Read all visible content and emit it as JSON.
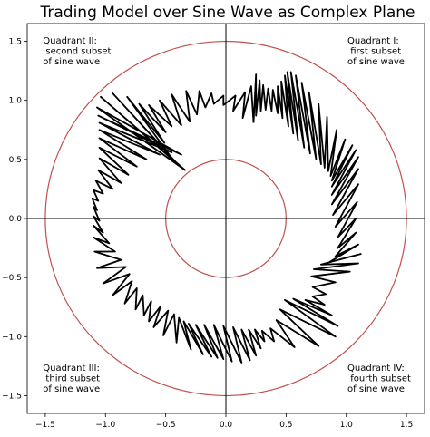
{
  "chart_data": {
    "type": "line",
    "title": "Trading Model over Sine Wave as Complex Plane",
    "xlim": [
      -1.65,
      1.65
    ],
    "ylim": [
      -1.65,
      1.65
    ],
    "grid": false,
    "x_ticks": [
      {
        "value": -1.5,
        "label": "−1.5"
      },
      {
        "value": -1.0,
        "label": "−1.0"
      },
      {
        "value": -0.5,
        "label": "−0.5"
      },
      {
        "value": 0.0,
        "label": "0.0"
      },
      {
        "value": 0.5,
        "label": "0.5"
      },
      {
        "value": 1.0,
        "label": "1.0"
      },
      {
        "value": 1.5,
        "label": "1.5"
      }
    ],
    "y_ticks": [
      {
        "value": 1.5,
        "label": "1.5"
      },
      {
        "value": 1.0,
        "label": "1.0"
      },
      {
        "value": 0.5,
        "label": "0.5"
      },
      {
        "value": 0.0,
        "label": "0.0"
      },
      {
        "value": -0.5,
        "label": "−0.5"
      },
      {
        "value": -1.0,
        "label": "−1.0"
      },
      {
        "value": -1.5,
        "label": "−1.5"
      }
    ],
    "circles": [
      {
        "radius": 1.5,
        "color": "#c0504d"
      },
      {
        "radius": 0.5,
        "color": "#c0504d"
      }
    ],
    "axis_lines": {
      "x": 0,
      "y": 0,
      "color": "#000000"
    },
    "trace": {
      "color": "#000000",
      "points": [
        [
          0.23,
          0.81
        ],
        [
          0.25,
          1.22
        ],
        [
          0.25,
          0.87
        ],
        [
          0.28,
          1.17
        ],
        [
          0.29,
          0.91
        ],
        [
          0.31,
          1.13
        ],
        [
          0.33,
          0.92
        ],
        [
          0.35,
          1.1
        ],
        [
          0.38,
          0.91
        ],
        [
          0.39,
          1.09
        ],
        [
          0.43,
          0.89
        ],
        [
          0.43,
          1.12
        ],
        [
          0.47,
          0.85
        ],
        [
          0.46,
          1.16
        ],
        [
          0.52,
          0.78
        ],
        [
          0.49,
          1.21
        ],
        [
          0.56,
          0.72
        ],
        [
          0.51,
          1.24
        ],
        [
          0.6,
          0.66
        ],
        [
          0.54,
          1.24
        ],
        [
          0.65,
          0.6
        ],
        [
          0.58,
          1.21
        ],
        [
          0.7,
          0.55
        ],
        [
          0.63,
          1.15
        ],
        [
          0.75,
          0.5
        ],
        [
          0.69,
          1.07
        ],
        [
          0.79,
          0.46
        ],
        [
          0.77,
          0.97
        ],
        [
          0.82,
          0.43
        ],
        [
          0.84,
          0.86
        ],
        [
          0.85,
          0.4
        ],
        [
          0.92,
          0.75
        ],
        [
          0.87,
          0.36
        ],
        [
          0.99,
          0.67
        ],
        [
          0.88,
          0.32
        ],
        [
          1.05,
          0.62
        ],
        [
          0.88,
          0.27
        ],
        [
          1.08,
          0.58
        ],
        [
          0.88,
          0.2
        ],
        [
          1.1,
          0.52
        ],
        [
          0.88,
          0.12
        ],
        [
          1.1,
          0.42
        ],
        [
          0.89,
          0.03
        ],
        [
          1.1,
          0.29
        ],
        [
          0.91,
          -0.07
        ],
        [
          1.09,
          0.14
        ],
        [
          0.93,
          -0.16
        ],
        [
          1.08,
          0.0
        ],
        [
          0.93,
          -0.25
        ],
        [
          1.08,
          -0.12
        ],
        [
          0.91,
          -0.32
        ],
        [
          1.1,
          -0.22
        ],
        [
          0.86,
          -0.37
        ],
        [
          1.12,
          -0.3
        ],
        [
          0.79,
          -0.39
        ],
        [
          1.1,
          -0.38
        ],
        [
          0.73,
          -0.43
        ],
        [
          1.03,
          -0.45
        ],
        [
          0.71,
          -0.49
        ],
        [
          0.91,
          -0.54
        ],
        [
          0.72,
          -0.58
        ],
        [
          0.83,
          -0.64
        ],
        [
          0.72,
          -0.66
        ],
        [
          0.82,
          -0.73
        ],
        [
          0.66,
          -0.69
        ],
        [
          0.88,
          -0.82
        ],
        [
          0.56,
          -0.68
        ],
        [
          0.93,
          -0.91
        ],
        [
          0.49,
          -0.69
        ],
        [
          0.91,
          -1.0
        ],
        [
          0.45,
          -0.77
        ],
        [
          0.77,
          -1.08
        ],
        [
          0.42,
          -0.86
        ],
        [
          0.57,
          -1.09
        ],
        [
          0.37,
          -0.93
        ],
        [
          0.4,
          -1.04
        ],
        [
          0.3,
          -0.95
        ],
        [
          0.32,
          -1.04
        ],
        [
          0.24,
          -0.94
        ],
        [
          0.29,
          -1.1
        ],
        [
          0.19,
          -0.94
        ],
        [
          0.25,
          -1.16
        ],
        [
          0.13,
          -0.94
        ],
        [
          0.2,
          -1.2
        ],
        [
          0.06,
          -0.92
        ],
        [
          0.13,
          -1.22
        ],
        [
          -0.02,
          -0.91
        ],
        [
          0.05,
          -1.21
        ],
        [
          -0.1,
          -0.9
        ],
        [
          -0.02,
          -1.19
        ],
        [
          -0.18,
          -0.9
        ],
        [
          -0.07,
          -1.18
        ],
        [
          -0.25,
          -0.9
        ],
        [
          -0.12,
          -1.17
        ],
        [
          -0.31,
          -0.89
        ],
        [
          -0.19,
          -1.15
        ],
        [
          -0.35,
          -0.87
        ],
        [
          -0.29,
          -1.11
        ],
        [
          -0.39,
          -0.84
        ],
        [
          -0.41,
          -1.05
        ],
        [
          -0.43,
          -0.81
        ],
        [
          -0.52,
          -0.99
        ],
        [
          -0.48,
          -0.78
        ],
        [
          -0.6,
          -0.92
        ],
        [
          -0.54,
          -0.74
        ],
        [
          -0.64,
          -0.87
        ],
        [
          -0.62,
          -0.7
        ],
        [
          -0.68,
          -0.82
        ],
        [
          -0.69,
          -0.65
        ],
        [
          -0.75,
          -0.77
        ],
        [
          -0.74,
          -0.59
        ],
        [
          -0.84,
          -0.72
        ],
        [
          -0.78,
          -0.53
        ],
        [
          -0.94,
          -0.65
        ],
        [
          -0.8,
          -0.47
        ],
        [
          -1.02,
          -0.55
        ],
        [
          -0.83,
          -0.41
        ],
        [
          -1.07,
          -0.42
        ],
        [
          -0.87,
          -0.35
        ],
        [
          -1.09,
          -0.28
        ],
        [
          -0.92,
          -0.28
        ],
        [
          -1.1,
          -0.16
        ],
        [
          -0.97,
          -0.21
        ],
        [
          -1.1,
          -0.06
        ],
        [
          -1.02,
          -0.12
        ],
        [
          -1.1,
          0.02
        ],
        [
          -1.05,
          -0.02
        ],
        [
          -1.1,
          0.1
        ],
        [
          -1.07,
          0.07
        ],
        [
          -1.11,
          0.17
        ],
        [
          -1.06,
          0.15
        ],
        [
          -1.1,
          0.24
        ],
        [
          -1.02,
          0.21
        ],
        [
          -1.08,
          0.32
        ],
        [
          -0.94,
          0.25
        ],
        [
          -1.06,
          0.41
        ],
        [
          -0.87,
          0.3
        ],
        [
          -1.05,
          0.51
        ],
        [
          -0.81,
          0.37
        ],
        [
          -1.05,
          0.6
        ],
        [
          -0.74,
          0.44
        ],
        [
          -1.05,
          0.68
        ],
        [
          -0.66,
          0.5
        ],
        [
          -1.05,
          0.75
        ],
        [
          -0.55,
          0.54
        ],
        [
          -1.05,
          0.81
        ],
        [
          -0.45,
          0.56
        ],
        [
          -1.06,
          0.87
        ],
        [
          -0.37,
          0.54
        ],
        [
          -1.07,
          0.94
        ],
        [
          -0.34,
          0.41
        ],
        [
          -1.04,
          1.03
        ],
        [
          -0.4,
          0.46
        ],
        [
          -0.94,
          1.06
        ],
        [
          -0.47,
          0.54
        ],
        [
          -0.82,
          1.03
        ],
        [
          -0.51,
          0.64
        ],
        [
          -0.72,
          0.97
        ],
        [
          -0.5,
          0.73
        ],
        [
          -0.64,
          0.96
        ],
        [
          -0.45,
          0.78
        ],
        [
          -0.55,
          1.0
        ],
        [
          -0.37,
          0.79
        ],
        [
          -0.45,
          1.05
        ],
        [
          -0.3,
          0.82
        ],
        [
          -0.33,
          1.08
        ],
        [
          -0.24,
          0.88
        ],
        [
          -0.22,
          1.08
        ],
        [
          -0.17,
          0.94
        ],
        [
          -0.12,
          1.06
        ],
        [
          -0.1,
          0.97
        ],
        [
          -0.02,
          1.04
        ],
        [
          -0.02,
          0.96
        ],
        [
          0.08,
          1.04
        ],
        [
          0.06,
          0.91
        ],
        [
          0.16,
          1.07
        ],
        [
          0.14,
          0.85
        ],
        [
          0.21,
          1.12
        ],
        [
          0.23,
          0.81
        ]
      ]
    },
    "annotations": [
      {
        "id": "q2",
        "lines": [
          "Quadrant II:",
          " second subset",
          "of sine wave"
        ]
      },
      {
        "id": "q1",
        "lines": [
          "Quadrant I:",
          " first subset",
          "of sine wave"
        ]
      },
      {
        "id": "q3",
        "lines": [
          "Quadrant III:",
          " third subset",
          "of sine wave"
        ]
      },
      {
        "id": "q4",
        "lines": [
          "Quadrant IV:",
          " fourth subset",
          "of sine wave"
        ]
      }
    ]
  }
}
